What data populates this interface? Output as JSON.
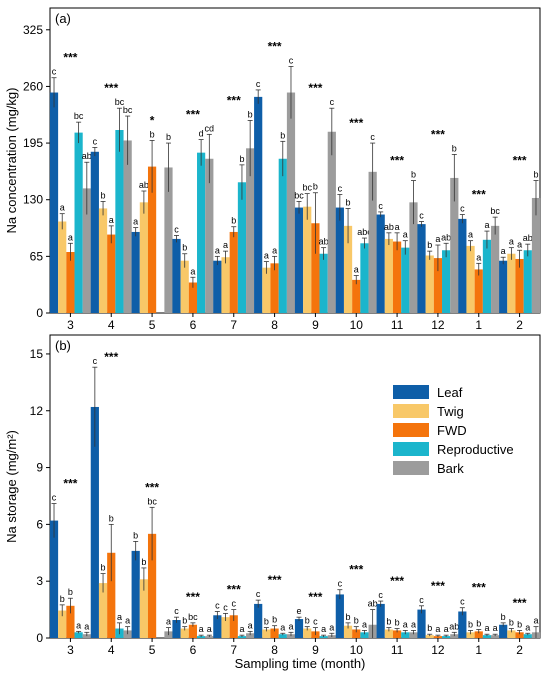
{
  "colors": {
    "Leaf": "#0e5ea8",
    "Twig": "#f8c868",
    "FWD": "#f4740c",
    "Reproductive": "#1bb5cc",
    "Bark": "#9c9c9c"
  },
  "xlabel": "Sampling time (month)",
  "chart_data": [
    {
      "type": "bar",
      "panel_label": "(a)",
      "ylabel": "Na concentration (mg/kg)",
      "ylim": [
        0,
        350
      ],
      "yticks": [
        0,
        65,
        130,
        195,
        260,
        325
      ],
      "categories": [
        "3",
        "4",
        "5",
        "6",
        "7",
        "8",
        "9",
        "10",
        "11",
        "12",
        "1",
        "2"
      ],
      "significance": [
        "***",
        "***",
        "*",
        "***",
        "***",
        "***",
        "***",
        "***",
        "***",
        "***",
        "***",
        "***"
      ],
      "series": [
        {
          "name": "Leaf",
          "values": [
            253,
            185,
            93,
            85,
            60,
            248,
            121,
            121,
            113,
            102,
            108,
            60
          ],
          "errors": [
            17,
            5,
            5,
            4,
            5,
            8,
            7,
            15,
            3,
            3,
            5,
            4
          ],
          "letters": [
            "c",
            "c",
            "a",
            "c",
            "a",
            "c",
            "bc",
            "c",
            "c",
            "c",
            "c",
            "a"
          ]
        },
        {
          "name": "Twig",
          "values": [
            105,
            120,
            127,
            60,
            64,
            52,
            122,
            100,
            85,
            66,
            77,
            68
          ],
          "errors": [
            9,
            8,
            13,
            8,
            7,
            7,
            15,
            20,
            7,
            5,
            6,
            7
          ],
          "letters": [
            "a",
            "b",
            "ab",
            "b",
            "a",
            "a",
            "bc",
            "b",
            "ab",
            "b",
            "a",
            "a"
          ]
        },
        {
          "name": "FWD",
          "values": [
            70,
            90,
            168,
            35,
            93,
            57,
            103,
            38,
            82,
            63,
            50,
            62
          ],
          "errors": [
            10,
            10,
            30,
            6,
            6,
            8,
            35,
            5,
            10,
            15,
            7,
            10
          ],
          "letters": [
            "a",
            "a",
            "b",
            "a",
            "b",
            "a",
            "b",
            "a",
            "a",
            "a",
            "a",
            "a"
          ]
        },
        {
          "name": "Reproductive",
          "values": [
            207,
            210,
            null,
            184,
            150,
            177,
            68,
            80,
            75,
            72,
            84,
            72
          ],
          "errors": [
            12,
            25,
            null,
            15,
            20,
            20,
            7,
            6,
            8,
            8,
            10,
            7
          ],
          "letters": [
            "bc",
            "bc",
            "",
            "d",
            "b",
            "b",
            "ab",
            "abc",
            "a",
            "ab",
            "a",
            "ab"
          ]
        },
        {
          "name": "Bark",
          "values": [
            143,
            198,
            167,
            177,
            189,
            253,
            208,
            162,
            127,
            155,
            100,
            132
          ],
          "errors": [
            30,
            28,
            28,
            28,
            32,
            30,
            27,
            33,
            25,
            27,
            10,
            20
          ],
          "letters": [
            "ab",
            "bc",
            "b",
            "cd",
            "b",
            "c",
            "c",
            "c",
            "b",
            "b",
            "bc",
            "b"
          ]
        }
      ]
    },
    {
      "type": "bar",
      "panel_label": "(b)",
      "ylabel": "Na storage (mg/m²)",
      "ylim": [
        0,
        16
      ],
      "yticks": [
        0,
        3,
        6,
        9,
        12,
        15
      ],
      "categories": [
        "3",
        "4",
        "5",
        "6",
        "7",
        "8",
        "9",
        "10",
        "11",
        "12",
        "1",
        "2"
      ],
      "significance": [
        "***",
        "***",
        "***",
        "***",
        "***",
        "***",
        "***",
        "***",
        "***",
        "***",
        "***",
        "***"
      ],
      "legend": [
        "Leaf",
        "Twig",
        "FWD",
        "Reproductive",
        "Bark"
      ],
      "legend_position": "upper-right",
      "series": [
        {
          "name": "Leaf",
          "values": [
            6.2,
            12.2,
            4.6,
            0.95,
            1.2,
            1.8,
            1.0,
            2.3,
            1.8,
            1.5,
            1.4,
            0.7
          ],
          "errors": [
            0.9,
            2.1,
            0.5,
            0.15,
            0.2,
            0.2,
            0.1,
            0.25,
            0.15,
            0.2,
            0.2,
            0.1
          ],
          "letters": [
            "c",
            "c",
            "b",
            "c",
            "c",
            "c",
            "e",
            "c",
            "c",
            "c",
            "c",
            "b"
          ]
        },
        {
          "name": "Twig",
          "values": [
            1.45,
            2.9,
            3.1,
            0.5,
            1.1,
            0.45,
            0.5,
            0.65,
            0.45,
            0.15,
            0.3,
            0.4
          ],
          "errors": [
            0.3,
            0.5,
            0.6,
            0.1,
            0.2,
            0.1,
            0.1,
            0.15,
            0.1,
            0.05,
            0.1,
            0.1
          ],
          "letters": [
            "b",
            "b",
            "b",
            "b",
            "c",
            "b",
            "b",
            "b",
            "b",
            "b",
            "b",
            "b"
          ]
        },
        {
          "name": "FWD",
          "values": [
            1.7,
            4.5,
            5.5,
            0.7,
            1.2,
            0.5,
            0.35,
            0.45,
            0.4,
            0.1,
            0.35,
            0.3
          ],
          "errors": [
            0.4,
            1.5,
            1.4,
            0.1,
            0.3,
            0.15,
            0.2,
            0.15,
            0.1,
            0.05,
            0.1,
            0.1
          ],
          "letters": [
            "b",
            "b",
            "bc",
            "bc",
            "c",
            "b",
            "c",
            "b",
            "b",
            "a",
            "b",
            "b"
          ]
        },
        {
          "name": "Reproductive",
          "values": [
            0.3,
            0.5,
            null,
            0.1,
            0.1,
            0.2,
            0.1,
            0.3,
            0.3,
            0.1,
            0.15,
            0.2
          ],
          "errors": [
            0.05,
            0.3,
            null,
            0.05,
            0.05,
            0.05,
            0.05,
            0.1,
            0.1,
            0.05,
            0.05,
            0.05
          ],
          "letters": [
            "a",
            "a",
            "",
            "a",
            "a",
            "a",
            "a",
            "a",
            "a",
            "a",
            "a",
            "a"
          ]
        },
        {
          "name": "Bark",
          "values": [
            0.2,
            0.4,
            0.35,
            0.1,
            0.25,
            0.2,
            0.15,
            0.7,
            0.3,
            0.2,
            0.15,
            0.3
          ],
          "errors": [
            0.1,
            0.2,
            0.2,
            0.05,
            0.1,
            0.1,
            0.1,
            0.8,
            0.1,
            0.1,
            0.05,
            0.3
          ],
          "letters": [
            "a",
            "a",
            "a",
            "a",
            "a",
            "a",
            "a",
            "ab",
            "a",
            "ab",
            "a",
            "a"
          ]
        }
      ]
    }
  ]
}
